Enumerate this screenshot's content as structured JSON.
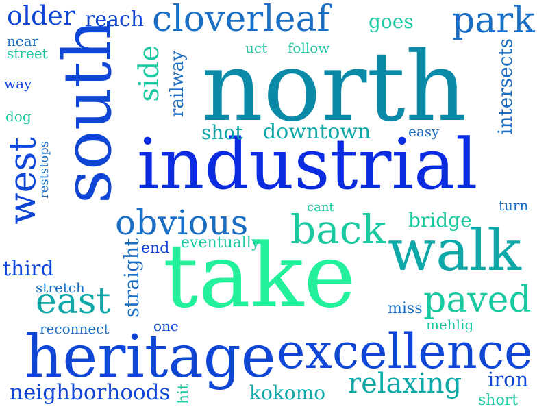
{
  "cloud": {
    "colors": {
      "blue": "#0a2be0",
      "royal": "#1046d6",
      "steel": "#1a6fc4",
      "teal": "#0b8aa8",
      "sea": "#0fa8a8",
      "green": "#1ac9a0",
      "mint": "#22f09a"
    },
    "words": {
      "north": "north",
      "industrial": "industrial",
      "take": "take",
      "south": "south",
      "heritage": "heritage",
      "excellence": "excellence",
      "walk": "walk",
      "cloverleaf": "cloverleaf",
      "west": "west",
      "obvious": "obvious",
      "back": "back",
      "paved": "paved",
      "park": "park",
      "east": "east",
      "relaxing": "relaxing",
      "neighborhoods": "neighborhoods",
      "older": "older",
      "side": "side",
      "downtown": "downtown",
      "kokomo": "kokomo",
      "reach": "reach",
      "third": "third",
      "bridge": "bridge",
      "straight": "straight",
      "intersects": "intersects",
      "iron": "iron",
      "shot": "shot",
      "railway": "railway",
      "goes": "goes",
      "eventually": "eventually",
      "reconnect": "reconnect",
      "stretch": "stretch",
      "mehlig": "mehlig",
      "miss": "miss",
      "short": "short",
      "turn": "turn",
      "cant": "cant",
      "easy": "easy",
      "follow": "follow",
      "uct": "uct",
      "end": "end",
      "one": "one",
      "hit": "hit",
      "near": "near",
      "street": "street",
      "way": "way",
      "dog": "dog",
      "reststops": "reststops"
    }
  }
}
